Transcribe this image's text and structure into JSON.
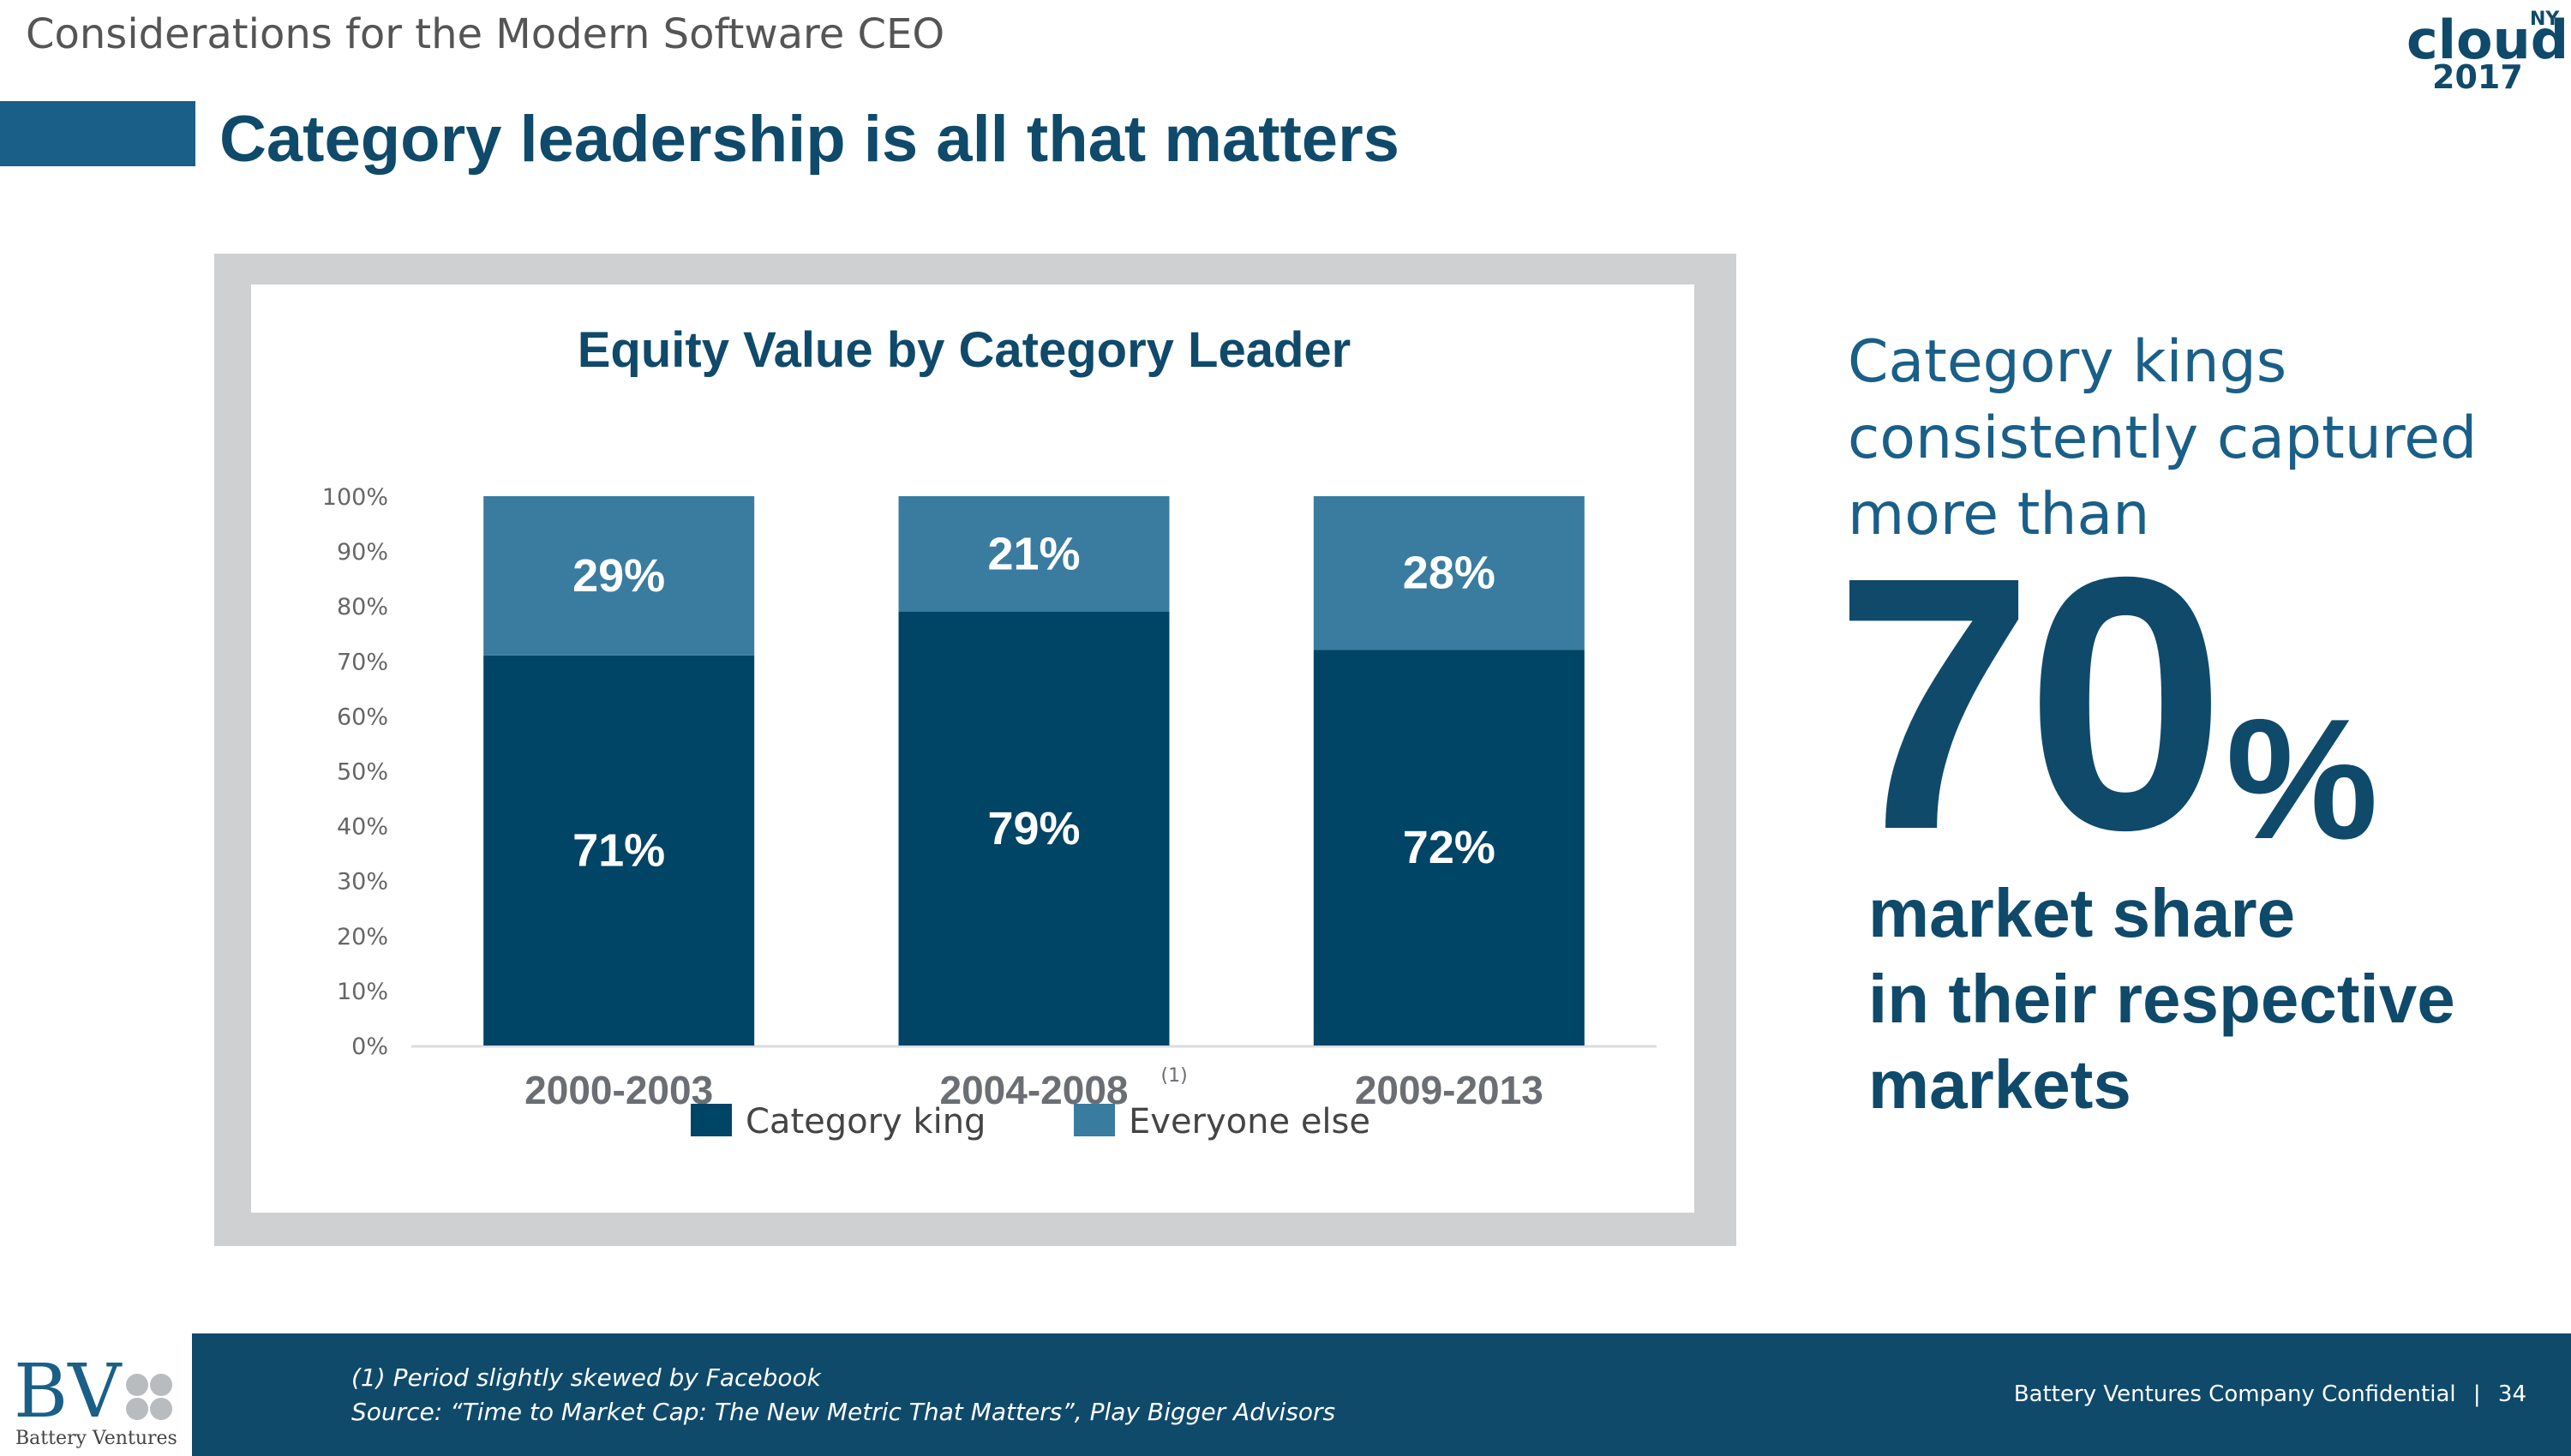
{
  "header": {
    "presentation_title": "Considerations for the Modern Software CEO",
    "logo": {
      "word": "cloud",
      "superscript": "NY",
      "year": "2017"
    }
  },
  "slide": {
    "title": "Category leadership is all that matters"
  },
  "colors": {
    "navy": "#0f4a6b",
    "category_king": "#004466",
    "everyone_else": "#3a7ca0",
    "accent_bar": "#1a5f87",
    "frame": "#cfd0d1"
  },
  "chart_data": {
    "type": "bar",
    "stacked": true,
    "title": "Equity Value by Category Leader",
    "categories": [
      "2000-2003",
      "2004-2008",
      "2009-2013"
    ],
    "category_notes": [
      "",
      "(1)",
      ""
    ],
    "series": [
      {
        "name": "Category king",
        "values": [
          71,
          79,
          72
        ],
        "labels": [
          "71%",
          "79%",
          "72%"
        ],
        "color": "#004466"
      },
      {
        "name": "Everyone else",
        "values": [
          29,
          21,
          28
        ],
        "labels": [
          "29%",
          "21%",
          "28%"
        ],
        "color": "#3a7ca0"
      }
    ],
    "ylim": [
      0,
      100
    ],
    "yticks": [
      "0%",
      "10%",
      "20%",
      "30%",
      "40%",
      "50%",
      "60%",
      "70%",
      "80%",
      "90%",
      "100%"
    ],
    "grid": false,
    "legend_position": "bottom"
  },
  "callout": {
    "intro_lines": [
      "Category kings",
      "consistently captured",
      "more than"
    ],
    "big_number": "70",
    "big_unit": "%",
    "outro_lines": [
      "market share",
      "in their respective",
      "markets"
    ]
  },
  "footer": {
    "logo_letters": "BV",
    "logo_name": "Battery Ventures",
    "note": "(1) Period slightly skewed by Facebook",
    "source": "Source: “Time to Market Cap: The New Metric That Matters”, Play Bigger Advisors",
    "confidential": "Battery Ventures Company Confidential",
    "separator": "|",
    "page_number": "34"
  }
}
